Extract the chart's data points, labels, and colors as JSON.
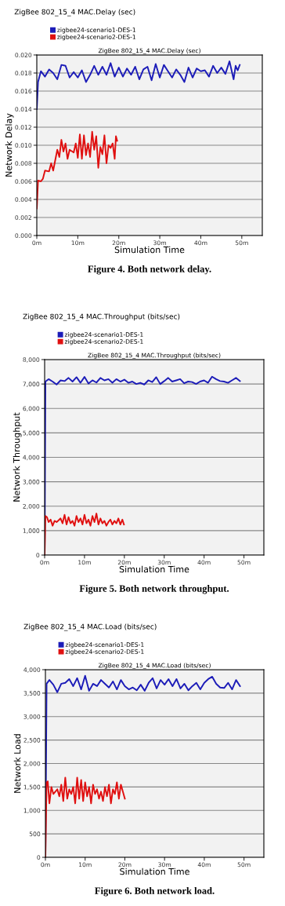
{
  "chart_data": [
    {
      "type": "line",
      "title": "ZigBee 802_15_4 MAC.Delay (sec)",
      "subtitle": "ZigBee 802_15_4 MAC.Delay (sec)",
      "xlabel": "Simulation Time",
      "ylabel": "Network Delay",
      "annotations": [
        "Figure 4. Both network delay."
      ],
      "legend": "top left",
      "grid": "y",
      "xlim": [
        0,
        55
      ],
      "xticks": [
        {
          "value": 0,
          "label": "0m"
        },
        {
          "value": 10,
          "label": "10m"
        },
        {
          "value": 20,
          "label": "20m"
        },
        {
          "value": 30,
          "label": "30m"
        },
        {
          "value": 40,
          "label": "40m"
        },
        {
          "value": 50,
          "label": "50m"
        }
      ],
      "ylim": [
        0,
        0.02
      ],
      "yticks": [
        {
          "value": 0,
          "label": "0.000"
        },
        {
          "value": 0.002,
          "label": "0.002"
        },
        {
          "value": 0.004,
          "label": "0.004"
        },
        {
          "value": 0.006,
          "label": "0.006"
        },
        {
          "value": 0.008,
          "label": "0.008"
        },
        {
          "value": 0.01,
          "label": "0.010"
        },
        {
          "value": 0.012,
          "label": "0.012"
        },
        {
          "value": 0.014,
          "label": "0.014"
        },
        {
          "value": 0.016,
          "label": "0.016"
        },
        {
          "value": 0.018,
          "label": "0.018"
        },
        {
          "value": 0.02,
          "label": "0.020"
        }
      ],
      "series": [
        {
          "name": "zigbee24-scenario1-DES-1",
          "color": "#1c1cb8",
          "x": [
            0,
            0.3,
            1,
            2,
            3,
            4,
            5,
            6,
            7,
            8,
            9,
            10,
            11,
            12,
            13,
            14,
            15,
            16,
            17,
            18,
            19,
            20,
            21,
            22,
            23,
            24,
            25,
            26,
            27,
            28,
            29,
            30,
            31,
            32,
            33,
            34,
            35,
            36,
            37,
            38,
            39,
            40,
            41,
            42,
            43,
            44,
            45,
            46,
            47,
            48,
            48.5,
            49,
            49.5
          ],
          "values": [
            0.014,
            0.017,
            0.0182,
            0.0176,
            0.0184,
            0.018,
            0.0173,
            0.0189,
            0.0188,
            0.0175,
            0.0181,
            0.0175,
            0.0183,
            0.017,
            0.0178,
            0.0188,
            0.0178,
            0.0187,
            0.0178,
            0.0191,
            0.0176,
            0.0186,
            0.0176,
            0.0185,
            0.0178,
            0.0187,
            0.0173,
            0.0184,
            0.0187,
            0.0172,
            0.019,
            0.0175,
            0.0189,
            0.0182,
            0.0175,
            0.0184,
            0.0178,
            0.017,
            0.0186,
            0.0175,
            0.0185,
            0.0182,
            0.0183,
            0.0176,
            0.0188,
            0.018,
            0.0186,
            0.0179,
            0.0193,
            0.0173,
            0.0188,
            0.0183,
            0.0189
          ]
        },
        {
          "name": "zigbee24-scenario2-DES-1",
          "color": "#e01010",
          "x": [
            0,
            0.3,
            1,
            1.5,
            2,
            3,
            3.5,
            4,
            5,
            5.5,
            6,
            6.5,
            7,
            7.5,
            8,
            9,
            9.5,
            10,
            10.5,
            11,
            11.5,
            12,
            12.5,
            13,
            13.5,
            14,
            14.5,
            15,
            15.5,
            16,
            16.5,
            17,
            17.5,
            18,
            18.5,
            19,
            19.3,
            19.6
          ],
          "values": [
            0.003,
            0.0061,
            0.006,
            0.0063,
            0.0072,
            0.0071,
            0.008,
            0.0072,
            0.0095,
            0.0087,
            0.0106,
            0.0093,
            0.0102,
            0.0085,
            0.0095,
            0.0092,
            0.0102,
            0.0086,
            0.0112,
            0.0085,
            0.0111,
            0.0089,
            0.0102,
            0.0087,
            0.0115,
            0.0095,
            0.011,
            0.0075,
            0.0098,
            0.009,
            0.0111,
            0.008,
            0.01,
            0.0097,
            0.0102,
            0.0085,
            0.011,
            0.0105
          ]
        }
      ]
    },
    {
      "type": "line",
      "title": "ZigBee 802_15_4 MAC.Throughput (bits/sec)",
      "subtitle": "ZigBee 802_15_4 MAC.Throughput (bits/sec)",
      "xlabel": "Simulation Time",
      "ylabel": "Network Throughput",
      "annotations": [
        "Figure 5. Both network throughput."
      ],
      "legend": "top left",
      "grid": "y",
      "xlim": [
        0,
        55
      ],
      "xticks": [
        {
          "value": 0,
          "label": "0m"
        },
        {
          "value": 10,
          "label": "10m"
        },
        {
          "value": 20,
          "label": "20m"
        },
        {
          "value": 30,
          "label": "30m"
        },
        {
          "value": 40,
          "label": "40m"
        },
        {
          "value": 50,
          "label": "50m"
        }
      ],
      "ylim": [
        0,
        8000
      ],
      "yticks": [
        0,
        {
          "value": 1000,
          "label": "1,000"
        },
        {
          "value": 2000,
          "label": "2,000"
        },
        {
          "value": 3000,
          "label": "3,000"
        },
        {
          "value": 4000,
          "label": "4,000"
        },
        {
          "value": 5000,
          "label": "5,000"
        },
        {
          "value": 6000,
          "label": "6,000"
        },
        {
          "value": 7000,
          "label": "7,000"
        },
        {
          "value": 8000,
          "label": "8,000"
        }
      ],
      "series": [
        {
          "name": "zigbee24-scenario1-DES-1",
          "color": "#1c1cb8",
          "x": [
            0,
            0.2,
            1,
            2,
            3,
            4,
            5,
            6,
            7,
            8,
            9,
            10,
            11,
            12,
            13,
            14,
            15,
            16,
            17,
            18,
            19,
            20,
            21,
            22,
            23,
            24,
            25,
            26,
            27,
            28,
            29,
            30,
            31,
            32,
            33,
            34,
            35,
            36,
            37,
            38,
            39,
            40,
            41,
            42,
            43,
            44,
            45,
            46,
            47,
            48,
            49
          ],
          "values": [
            0,
            7100,
            7200,
            7100,
            6980,
            7150,
            7120,
            7250,
            7100,
            7280,
            7050,
            7290,
            7020,
            7150,
            7060,
            7250,
            7150,
            7200,
            7050,
            7200,
            7100,
            7180,
            7050,
            7100,
            7000,
            7050,
            6980,
            7150,
            7080,
            7280,
            7000,
            7120,
            7250,
            7100,
            7150,
            7200,
            7030,
            7100,
            7080,
            7000,
            7100,
            7150,
            7050,
            7300,
            7200,
            7120,
            7100,
            7050,
            7150,
            7250,
            7120
          ]
        },
        {
          "name": "zigbee24-scenario2-DES-1",
          "color": "#e01010",
          "x": [
            0,
            0.2,
            0.6,
            1,
            1.5,
            2,
            2.5,
            3,
            3.5,
            4,
            4.5,
            5,
            5.5,
            6,
            6.5,
            7,
            7.5,
            8,
            8.5,
            9,
            9.5,
            10,
            10.5,
            11,
            11.5,
            12,
            12.5,
            13,
            13.5,
            14,
            14.5,
            15,
            15.5,
            16,
            16.5,
            17,
            17.5,
            18,
            18.5,
            19,
            19.5,
            19.9
          ],
          "values": [
            0,
            1600,
            1550,
            1350,
            1450,
            1200,
            1400,
            1350,
            1420,
            1500,
            1300,
            1650,
            1250,
            1550,
            1300,
            1400,
            1200,
            1600,
            1350,
            1500,
            1250,
            1650,
            1300,
            1450,
            1200,
            1600,
            1350,
            1700,
            1250,
            1500,
            1300,
            1400,
            1200,
            1350,
            1450,
            1250,
            1400,
            1300,
            1500,
            1250,
            1450,
            1250
          ]
        }
      ]
    },
    {
      "type": "line",
      "title": "ZigBee 802_15_4 MAC.Load (bits/sec)",
      "subtitle": "ZigBee 802_15_4 MAC.Load (bits/sec)",
      "xlabel": "Simulation Time",
      "ylabel": "Network Load",
      "annotations": [
        "Figure 6. Both network load."
      ],
      "legend": "top left",
      "grid": "y",
      "xlim": [
        0,
        55
      ],
      "xticks": [
        {
          "value": 0,
          "label": "0m"
        },
        {
          "value": 10,
          "label": "10m"
        },
        {
          "value": 20,
          "label": "20m"
        },
        {
          "value": 30,
          "label": "30m"
        },
        {
          "value": 40,
          "label": "40m"
        },
        {
          "value": 50,
          "label": "50m"
        }
      ],
      "ylim": [
        0,
        4000
      ],
      "yticks": [
        0,
        500,
        {
          "value": 1000,
          "label": "1,000"
        },
        {
          "value": 1500,
          "label": "1,500"
        },
        {
          "value": 2000,
          "label": "2,000"
        },
        {
          "value": 2500,
          "label": "2,500"
        },
        {
          "value": 3000,
          "label": "3,000"
        },
        {
          "value": 3500,
          "label": "3,500"
        },
        {
          "value": 4000,
          "label": "4,000"
        }
      ],
      "series": [
        {
          "name": "zigbee24-scenario1-DES-1",
          "color": "#1c1cb8",
          "x": [
            0,
            0.3,
            1,
            2,
            3,
            4,
            5,
            6,
            7,
            8,
            9,
            10,
            11,
            12,
            13,
            14,
            15,
            16,
            17,
            18,
            19,
            20,
            21,
            22,
            23,
            24,
            25,
            26,
            27,
            28,
            29,
            30,
            31,
            32,
            33,
            34,
            35,
            36,
            37,
            38,
            39,
            40,
            41,
            42,
            43,
            44,
            45,
            46,
            47,
            48,
            49
          ],
          "values": [
            0,
            3700,
            3780,
            3680,
            3520,
            3700,
            3720,
            3800,
            3650,
            3820,
            3580,
            3870,
            3550,
            3700,
            3650,
            3780,
            3700,
            3620,
            3750,
            3580,
            3780,
            3650,
            3580,
            3620,
            3560,
            3680,
            3550,
            3720,
            3820,
            3600,
            3780,
            3680,
            3800,
            3650,
            3800,
            3600,
            3700,
            3560,
            3650,
            3720,
            3580,
            3720,
            3800,
            3850,
            3700,
            3620,
            3610,
            3720,
            3580,
            3780,
            3650
          ]
        },
        {
          "name": "zigbee24-scenario2-DES-1",
          "color": "#e01010",
          "x": [
            0,
            0.3,
            0.6,
            1,
            1.5,
            2,
            2.5,
            3,
            3.5,
            4,
            4.5,
            5,
            5.5,
            6,
            6.5,
            7,
            7.5,
            8,
            8.5,
            9,
            9.5,
            10,
            10.5,
            11,
            11.5,
            12,
            12.5,
            13,
            13.5,
            14,
            14.5,
            15,
            15.5,
            16,
            16.5,
            17,
            17.5,
            18,
            18.5,
            19,
            19.5,
            20
          ],
          "values": [
            0,
            1600,
            1620,
            1150,
            1500,
            1350,
            1400,
            1450,
            1300,
            1550,
            1200,
            1700,
            1250,
            1450,
            1350,
            1500,
            1150,
            1700,
            1250,
            1650,
            1200,
            1600,
            1300,
            1500,
            1150,
            1550,
            1350,
            1450,
            1250,
            1400,
            1200,
            1500,
            1300,
            1550,
            1150,
            1450,
            1350,
            1600,
            1250,
            1550,
            1400,
            1250
          ]
        }
      ]
    }
  ]
}
